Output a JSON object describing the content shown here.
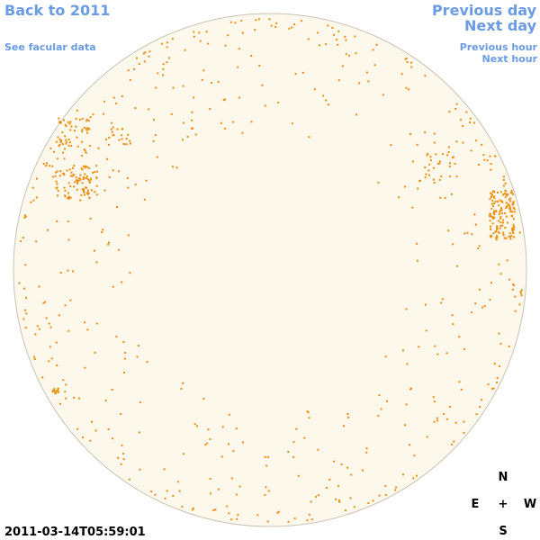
{
  "nav": {
    "back": "Back to 2011",
    "facular": "See facular data",
    "previous_day": "Previous day",
    "next_day": "Next day",
    "previous_hour": "Previous hour",
    "next_hour": "Next hour"
  },
  "timestamp": "2011-03-14T05:59:01",
  "compass": {
    "north": "N",
    "east": "E",
    "center": "+",
    "west": "W",
    "south": "S"
  }
}
